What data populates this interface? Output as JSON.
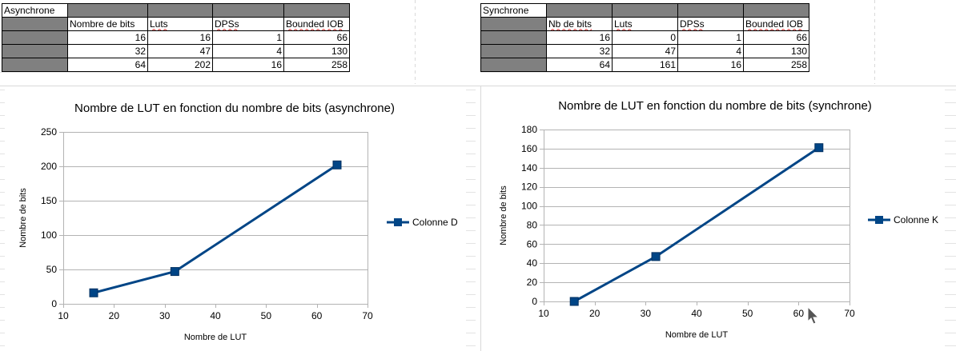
{
  "tables": [
    {
      "title": "Asynchrone",
      "headers": [
        "",
        "Nombre de bits",
        "Luts",
        "DPSs",
        "Bounded IOB"
      ],
      "rows": [
        [
          16,
          16,
          1,
          66
        ],
        [
          32,
          47,
          4,
          130
        ],
        [
          64,
          202,
          16,
          258
        ]
      ]
    },
    {
      "title": "Synchrone",
      "headers": [
        "",
        "Nb de bits",
        "Luts",
        "DPSs",
        "Bounded IOB"
      ],
      "rows": [
        [
          16,
          0,
          1,
          66
        ],
        [
          32,
          47,
          4,
          130
        ],
        [
          64,
          161,
          16,
          258
        ]
      ]
    }
  ],
  "colors": {
    "series": "#004586",
    "grid": "#b3b3b3",
    "header_gray": "#808080"
  },
  "chart_data": [
    {
      "type": "line",
      "title": "Nombre de LUT en fonction du nombre de bits (asynchrone)",
      "xlabel": "Nombre de LUT",
      "ylabel": "Nombre de bits",
      "xlim": [
        10,
        70
      ],
      "ylim": [
        0,
        250
      ],
      "xticks": [
        10,
        20,
        30,
        40,
        50,
        60,
        70
      ],
      "yticks": [
        0,
        50,
        100,
        150,
        200,
        250
      ],
      "grid": "horizontal",
      "legend": "right",
      "series": [
        {
          "name": "Colonne D",
          "x": [
            16,
            32,
            64
          ],
          "y": [
            16,
            47,
            202
          ]
        }
      ]
    },
    {
      "type": "line",
      "title": "Nombre de LUT en fonction du nombre de bits (synchrone)",
      "xlabel": "Nombre de LUT",
      "ylabel": "Nombre de bits",
      "xlim": [
        10,
        70
      ],
      "ylim": [
        0,
        180
      ],
      "xticks": [
        10,
        20,
        30,
        40,
        50,
        60,
        70
      ],
      "yticks": [
        0,
        20,
        40,
        60,
        80,
        100,
        120,
        140,
        160,
        180
      ],
      "grid": "horizontal",
      "legend": "right",
      "series": [
        {
          "name": "Colonne K",
          "x": [
            16,
            32,
            64
          ],
          "y": [
            0,
            47,
            161
          ]
        }
      ]
    }
  ]
}
